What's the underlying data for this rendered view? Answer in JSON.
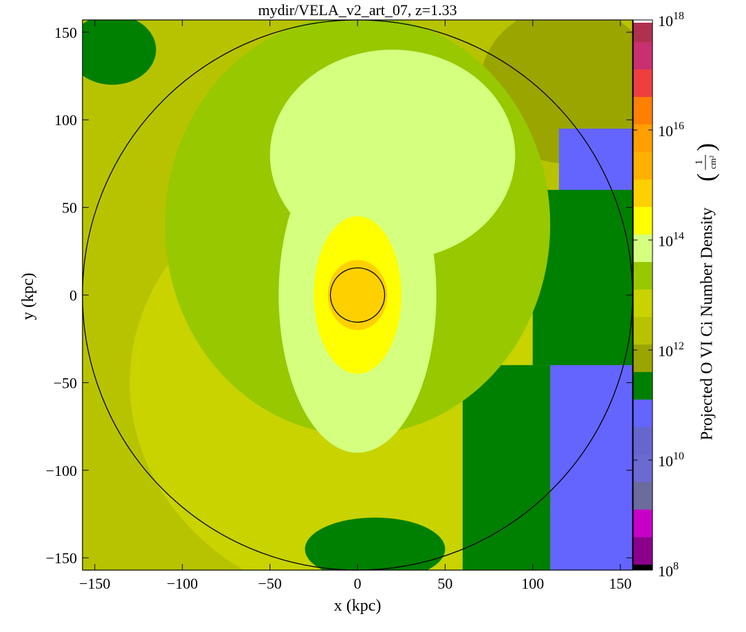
{
  "chart_data": {
    "type": "heatmap",
    "title": "mydir/VELA_v2_art_07, z=1.33",
    "xlabel": "x  (kpc)",
    "ylabel": "y  (kpc)",
    "xlim": [
      -157,
      157
    ],
    "ylim": [
      -157,
      157
    ],
    "xticks": [
      "−150",
      "−100",
      "−50",
      "0",
      "50",
      "100",
      "150"
    ],
    "yticks": [
      "−150",
      "−100",
      "−50",
      "0",
      "50",
      "100",
      "150"
    ],
    "xtick_values": [
      -150,
      -100,
      -50,
      0,
      50,
      100,
      150
    ],
    "ytick_values": [
      -150,
      -100,
      -50,
      0,
      50,
      100,
      150
    ],
    "circles_kpc": [
      157,
      15.5
    ],
    "colorbar": {
      "label": "Projected O VI Ci Number Density",
      "unit": "1/cm²",
      "scale": "log",
      "range_exponent": [
        8,
        18
      ],
      "tick_exponents": [
        8,
        10,
        12,
        14,
        16,
        18
      ],
      "tick_base": "10",
      "levels": [
        {
          "from": 8.0,
          "to": 8.1,
          "color": "#000000"
        },
        {
          "from": 8.1,
          "to": 8.6,
          "color": "#8b008b"
        },
        {
          "from": 8.6,
          "to": 9.1,
          "color": "#c700c7"
        },
        {
          "from": 9.1,
          "to": 9.6,
          "color": "#6b6b9c"
        },
        {
          "from": 9.6,
          "to": 10.1,
          "color": "#6a6ad0"
        },
        {
          "from": 10.1,
          "to": 10.6,
          "color": "#6666cc"
        },
        {
          "from": 10.6,
          "to": 11.1,
          "color": "#6464ff"
        },
        {
          "from": 11.1,
          "to": 11.6,
          "color": "#008000"
        },
        {
          "from": 11.6,
          "to": 12.1,
          "color": "#9aa500"
        },
        {
          "from": 12.1,
          "to": 12.6,
          "color": "#b8c300"
        },
        {
          "from": 12.6,
          "to": 13.1,
          "color": "#c8d300"
        },
        {
          "from": 13.1,
          "to": 13.6,
          "color": "#98c800"
        },
        {
          "from": 13.6,
          "to": 14.1,
          "color": "#d4ff7f"
        },
        {
          "from": 14.1,
          "to": 14.6,
          "color": "#ffff00"
        },
        {
          "from": 14.6,
          "to": 15.1,
          "color": "#ffd000"
        },
        {
          "from": 15.1,
          "to": 15.6,
          "color": "#ffb000"
        },
        {
          "from": 15.6,
          "to": 16.1,
          "color": "#ffa000"
        },
        {
          "from": 16.1,
          "to": 16.6,
          "color": "#ff7f00"
        },
        {
          "from": 16.6,
          "to": 17.1,
          "color": "#ee3f3f"
        },
        {
          "from": 17.1,
          "to": 17.6,
          "color": "#c83070"
        },
        {
          "from": 17.6,
          "to": 17.95,
          "color": "#b03050"
        },
        {
          "from": 17.95,
          "to": 18.0,
          "color": "#ffffff"
        }
      ]
    },
    "regions": [
      {
        "shape": "rect",
        "x": [
          -157,
          157
        ],
        "y": [
          -157,
          157
        ],
        "level": 12.3
      },
      {
        "shape": "ellipse",
        "cx": 120,
        "cy": 120,
        "rx": 50,
        "ry": 45,
        "level": 11.6
      },
      {
        "shape": "ellipse",
        "cx": -140,
        "cy": 140,
        "rx": 25,
        "ry": 20,
        "level": 11.3
      },
      {
        "shape": "ellipse",
        "cx": 20,
        "cy": -50,
        "rx": 150,
        "ry": 130,
        "level": 12.8
      },
      {
        "shape": "rect",
        "x": [
          110,
          157
        ],
        "y": [
          -157,
          0
        ],
        "level": 10.8
      },
      {
        "shape": "rect",
        "x": [
          60,
          110
        ],
        "y": [
          -157,
          -40
        ],
        "level": 11.3
      },
      {
        "shape": "rect",
        "x": [
          115,
          157
        ],
        "y": [
          0,
          95
        ],
        "level": 10.8
      },
      {
        "shape": "rect",
        "x": [
          100,
          157
        ],
        "y": [
          -40,
          60
        ],
        "level": 11.3
      },
      {
        "shape": "ellipse",
        "cx": 10,
        "cy": -145,
        "rx": 40,
        "ry": 18,
        "level": 11.3
      },
      {
        "shape": "ellipse",
        "cx": 0,
        "cy": 40,
        "rx": 110,
        "ry": 120,
        "level": 13.3
      },
      {
        "shape": "ellipse",
        "cx": 20,
        "cy": 80,
        "rx": 70,
        "ry": 60,
        "level": 13.8
      },
      {
        "shape": "ellipse",
        "cx": 0,
        "cy": 0,
        "rx": 45,
        "ry": 90,
        "level": 13.8
      },
      {
        "shape": "ellipse",
        "cx": 0,
        "cy": 0,
        "rx": 25,
        "ry": 45,
        "level": 14.3
      },
      {
        "shape": "ellipse",
        "cx": 0,
        "cy": 0,
        "rx": 17,
        "ry": 20,
        "level": 14.8
      }
    ]
  }
}
